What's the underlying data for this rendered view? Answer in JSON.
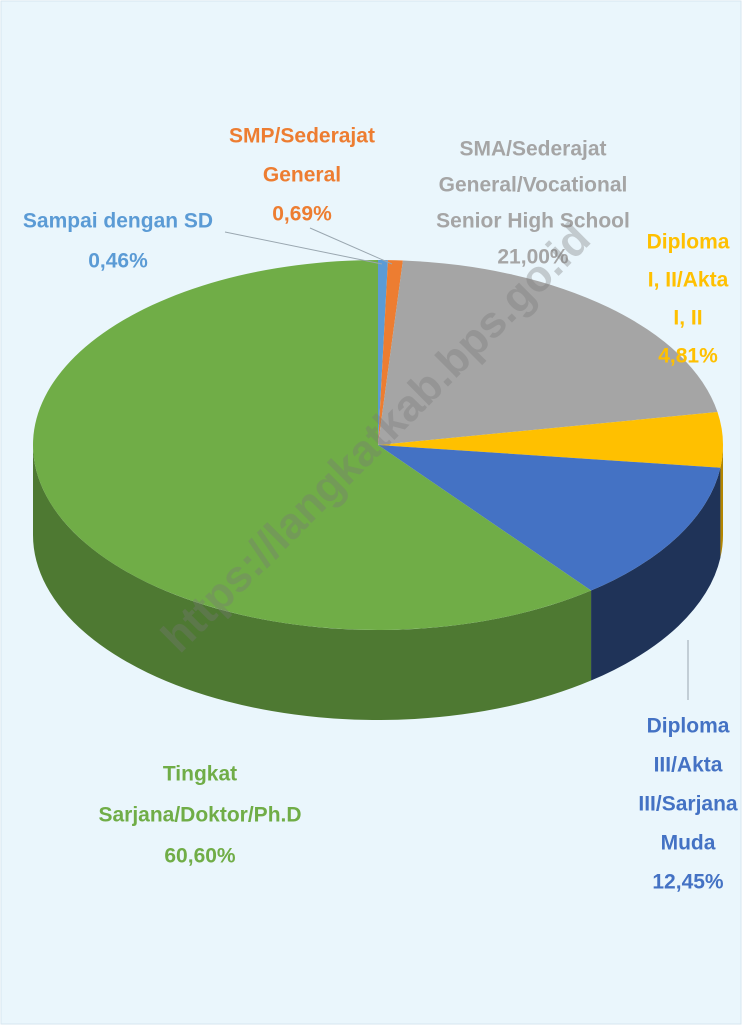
{
  "chart_data": {
    "type": "pie3d",
    "categories": [
      [
        "Sampai dengan SD"
      ],
      [
        "SMP/Sederajat",
        "General"
      ],
      [
        "SMA/Sederajat",
        "General/Vocational",
        "Senior High School"
      ],
      [
        "Diploma",
        "I, II/Akta",
        "I, II"
      ],
      [
        "Diploma",
        "III/Akta",
        "III/Sarjana",
        "Muda"
      ],
      [
        "Tingkat",
        "Sarjana/Doktor/Ph.D"
      ]
    ],
    "values": [
      0.46,
      0.69,
      21.0,
      4.81,
      12.45,
      60.6
    ],
    "value_labels": [
      "0,46%",
      "0,69%",
      "21,00%",
      "4,81%",
      "12,45%",
      "60,60%"
    ],
    "colors": [
      "#5b9bd5",
      "#ed7d31",
      "#a5a5a5",
      "#ffc000",
      "#4472c4",
      "#70ad47"
    ],
    "label_colors": [
      "#5b9bd5",
      "#ed7d31",
      "#a5a5a5",
      "#ffc000",
      "#4472c4",
      "#70ad47"
    ],
    "watermark": "https://langkatkab.bps.go.id"
  }
}
